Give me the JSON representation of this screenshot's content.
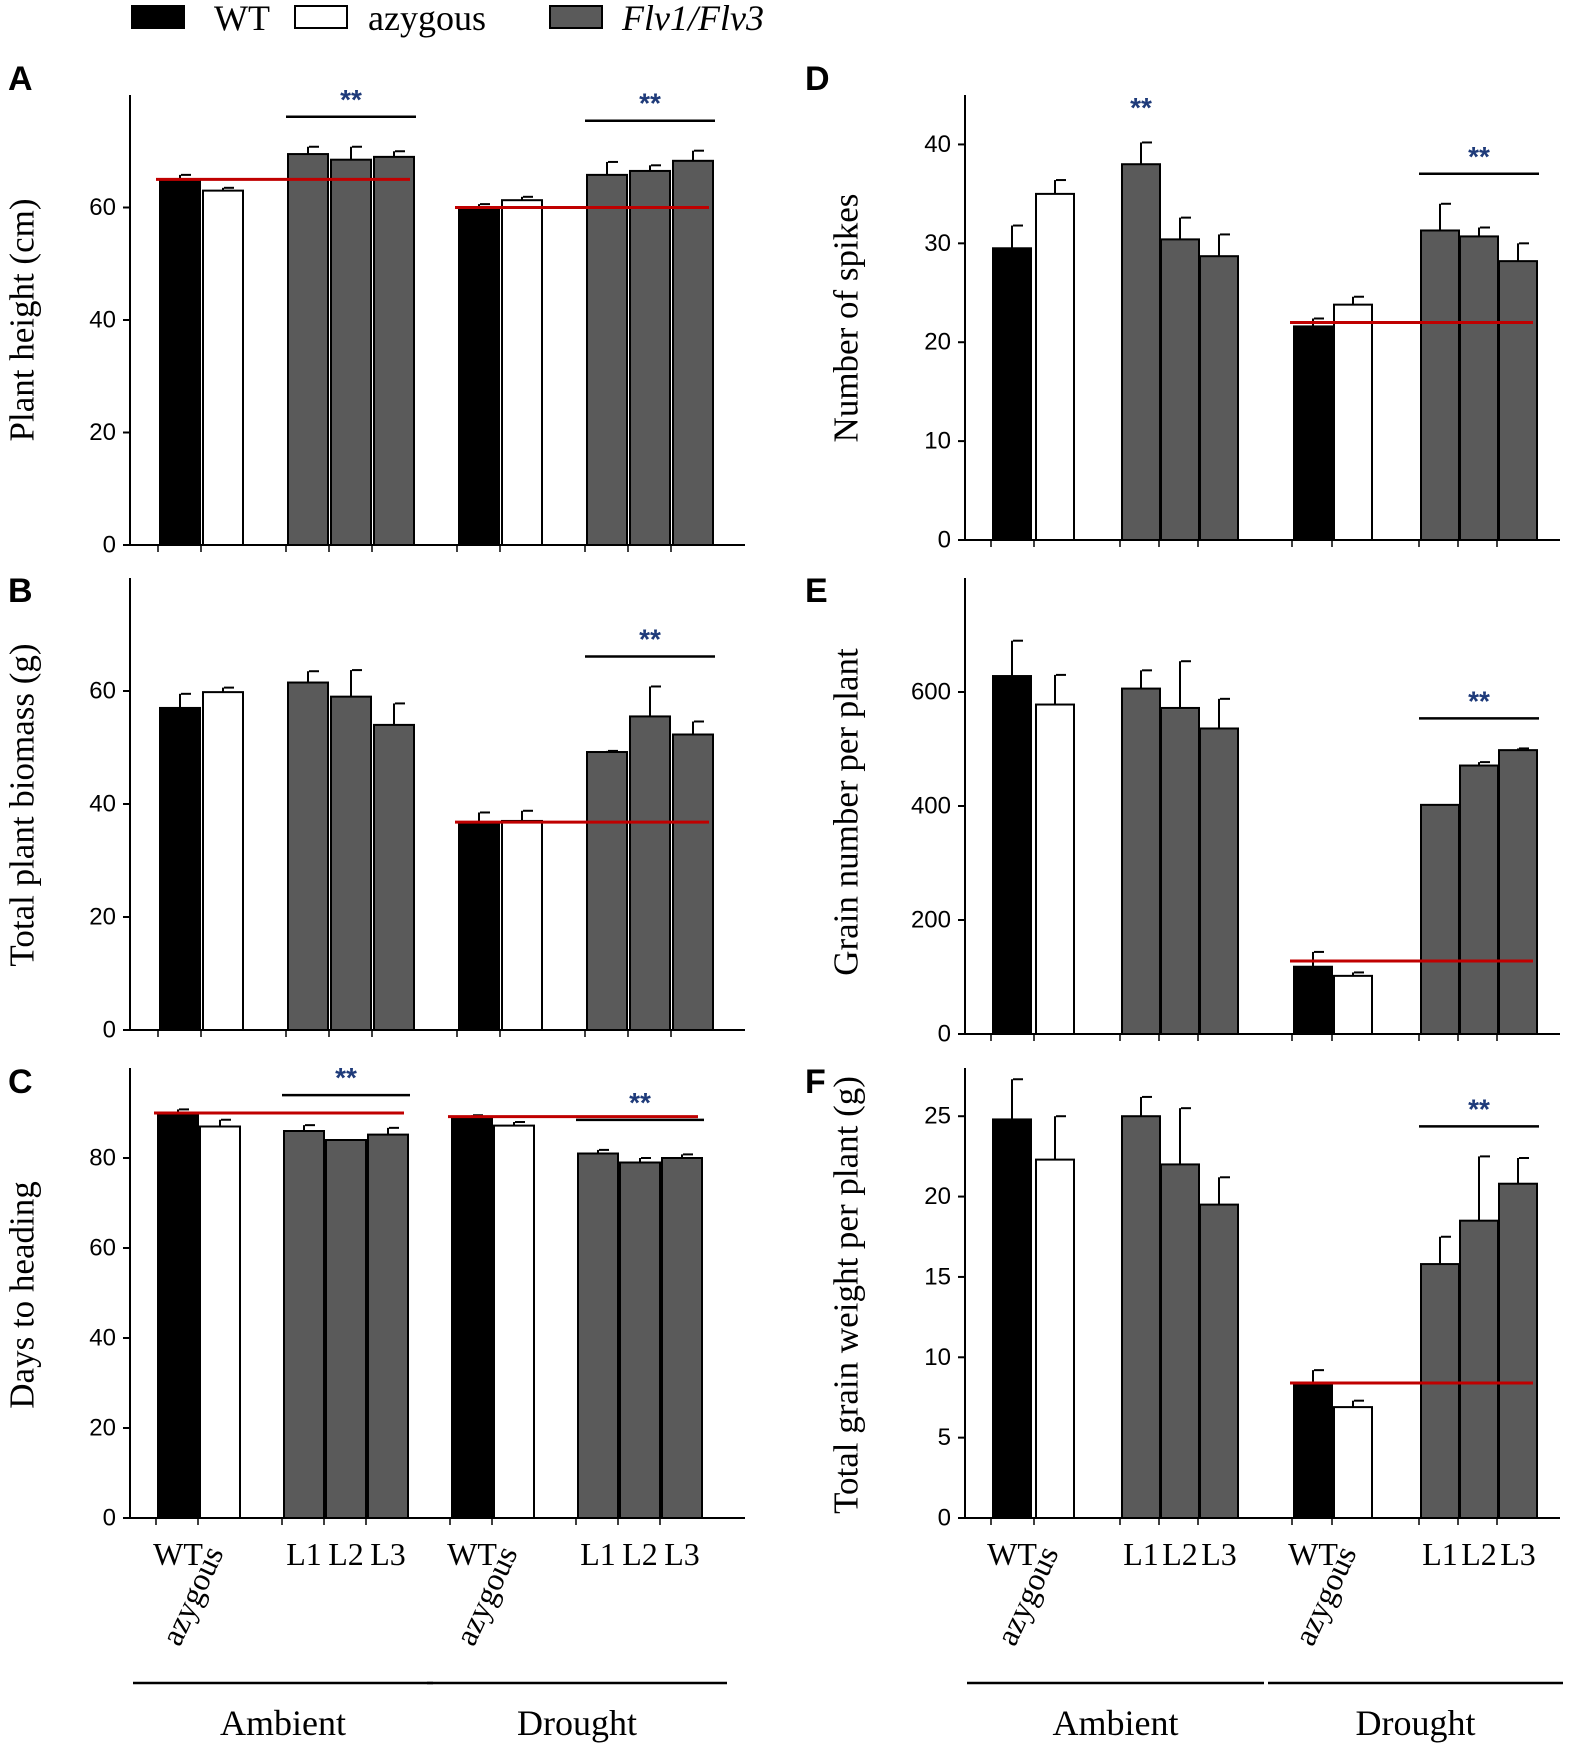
{
  "legend": [
    {
      "label": "WT",
      "fill": "#000000",
      "italic": false
    },
    {
      "label": "azygous",
      "fill": "#ffffff",
      "italic": false
    },
    {
      "label": "Flv1/Flv3",
      "fill": "#5a5a5a",
      "italic": true
    }
  ],
  "colors": {
    "wt": "#000000",
    "azygous": "#ffffff",
    "flv": "#5a5a5a",
    "reference_line": "#c00000",
    "significance": "#1f3b7a",
    "axis": "#000000"
  },
  "x_axis": {
    "categories": [
      "WT",
      "azygous",
      "L1",
      "L2",
      "L3",
      "WT",
      "azygous",
      "L1",
      "L2",
      "L3"
    ],
    "group_labels": [
      "Ambient",
      "Drought"
    ]
  },
  "chart_data": [
    {
      "panel": "A",
      "type": "bar",
      "title": "",
      "xlabel": "",
      "ylabel": "Plant height (cm)",
      "ylim": [
        0,
        80
      ],
      "yticks": [
        0,
        20,
        40,
        60
      ],
      "series": [
        {
          "name": "Ambient",
          "categories": [
            "WT",
            "azygous",
            "L1",
            "L2",
            "L3"
          ],
          "values": [
            65,
            63,
            69.5,
            68.5,
            69
          ],
          "errors": [
            0.8,
            0.5,
            1.3,
            2.3,
            1
          ]
        },
        {
          "name": "Drought",
          "categories": [
            "WT",
            "azygous",
            "L1",
            "L2",
            "L3"
          ],
          "values": [
            60,
            61.3,
            65.8,
            66.5,
            68.3
          ],
          "errors": [
            0.6,
            0.6,
            2.3,
            1,
            1.8
          ]
        }
      ],
      "reference_lines": [
        {
          "group": "Ambient",
          "value": 65
        },
        {
          "group": "Drought",
          "value": 60
        }
      ],
      "significance": [
        {
          "group": "Ambient",
          "label": "**",
          "from": "L1",
          "to": "L3"
        },
        {
          "group": "Drought",
          "label": "**",
          "from": "L1",
          "to": "L3"
        }
      ]
    },
    {
      "panel": "B",
      "type": "bar",
      "title": "",
      "xlabel": "",
      "ylabel": "Total plant biomass (g)",
      "ylim": [
        0,
        80
      ],
      "yticks": [
        0,
        20,
        40,
        60
      ],
      "series": [
        {
          "name": "Ambient",
          "categories": [
            "WT",
            "azygous",
            "L1",
            "L2",
            "L3"
          ],
          "values": [
            57,
            59.8,
            61.5,
            59,
            54
          ],
          "errors": [
            2.5,
            0.8,
            2,
            4.7,
            3.8
          ]
        },
        {
          "name": "Drought",
          "categories": [
            "WT",
            "azygous",
            "L1",
            "L2",
            "L3"
          ],
          "values": [
            36.5,
            37,
            49.2,
            55.5,
            52.3
          ],
          "errors": [
            2,
            1.8,
            0.2,
            5.3,
            2.3
          ]
        }
      ],
      "reference_lines": [
        {
          "group": "Drought",
          "value": 36.8
        }
      ],
      "significance": [
        {
          "group": "Drought",
          "label": "**",
          "from": "L1",
          "to": "L3"
        }
      ]
    },
    {
      "panel": "C",
      "type": "bar",
      "title": "",
      "xlabel": "",
      "ylabel": "Days to heading",
      "ylim": [
        0,
        100
      ],
      "yticks": [
        0,
        20,
        40,
        60,
        80
      ],
      "series": [
        {
          "name": "Ambient",
          "categories": [
            "WT",
            "azygous",
            "L1",
            "L2",
            "L3"
          ],
          "values": [
            90,
            87,
            86,
            84,
            85.2
          ],
          "errors": [
            0.8,
            1.5,
            1.3,
            0,
            1.5
          ]
        },
        {
          "name": "Drought",
          "categories": [
            "WT",
            "azygous",
            "L1",
            "L2",
            "L3"
          ],
          "values": [
            89,
            87.2,
            81,
            79,
            80
          ],
          "errors": [
            0.5,
            0.8,
            0.8,
            1,
            0.8
          ]
        }
      ],
      "reference_lines": [
        {
          "group": "Ambient",
          "value": 90
        },
        {
          "group": "Drought",
          "value": 89.2
        }
      ],
      "significance": [
        {
          "group": "Ambient",
          "label": "**",
          "from": "L1",
          "to": "L3"
        },
        {
          "group": "Drought",
          "label": "**",
          "from": "L1",
          "to": "L3"
        }
      ]
    },
    {
      "panel": "D",
      "type": "bar",
      "title": "",
      "xlabel": "",
      "ylabel": "Number of spikes",
      "ylim": [
        0,
        45
      ],
      "yticks": [
        0,
        10,
        20,
        30,
        40
      ],
      "series": [
        {
          "name": "Ambient",
          "categories": [
            "WT",
            "azygous",
            "L1",
            "L2",
            "L3"
          ],
          "values": [
            29.5,
            35,
            38,
            30.4,
            28.7
          ],
          "errors": [
            2.3,
            1.4,
            2.2,
            2.2,
            2.2
          ]
        },
        {
          "name": "Drought",
          "categories": [
            "WT",
            "azygous",
            "L1",
            "L2",
            "L3"
          ],
          "values": [
            21.6,
            23.8,
            31.3,
            30.7,
            28.2
          ],
          "errors": [
            0.8,
            0.8,
            2.7,
            0.9,
            1.8
          ]
        }
      ],
      "reference_lines": [
        {
          "group": "Drought",
          "value": 22
        }
      ],
      "significance": [
        {
          "group": "Ambient",
          "label": "**",
          "over": "L1"
        },
        {
          "group": "Drought",
          "label": "**",
          "from": "L1",
          "to": "L3"
        }
      ]
    },
    {
      "panel": "E",
      "type": "bar",
      "title": "",
      "xlabel": "",
      "ylabel": "Grain number per plant",
      "ylim": [
        0,
        800
      ],
      "yticks": [
        0,
        200,
        400,
        600
      ],
      "series": [
        {
          "name": "Ambient",
          "categories": [
            "WT",
            "azygous",
            "L1",
            "L2",
            "L3"
          ],
          "values": [
            628,
            578,
            606,
            572,
            536
          ],
          "errors": [
            62,
            52,
            32,
            82,
            52
          ]
        },
        {
          "name": "Drought",
          "categories": [
            "WT",
            "azygous",
            "L1",
            "L2",
            "L3"
          ],
          "values": [
            118,
            102,
            402,
            471,
            498
          ],
          "errors": [
            26,
            6,
            0,
            6,
            3
          ]
        }
      ],
      "reference_lines": [
        {
          "group": "Drought",
          "value": 128
        }
      ],
      "significance": [
        {
          "group": "Drought",
          "label": "**",
          "from": "L1",
          "to": "L3"
        }
      ]
    },
    {
      "panel": "F",
      "type": "bar",
      "title": "",
      "xlabel": "",
      "ylabel": "Total grain weight per plant (g)",
      "ylim": [
        0,
        28
      ],
      "yticks": [
        0,
        5,
        10,
        15,
        20,
        25
      ],
      "series": [
        {
          "name": "Ambient",
          "categories": [
            "WT",
            "azygous",
            "L1",
            "L2",
            "L3"
          ],
          "values": [
            24.8,
            22.3,
            25,
            22,
            19.5
          ],
          "errors": [
            2.5,
            2.7,
            1.2,
            3.5,
            1.7
          ]
        },
        {
          "name": "Drought",
          "categories": [
            "WT",
            "azygous",
            "L1",
            "L2",
            "L3"
          ],
          "values": [
            8.3,
            6.9,
            15.8,
            18.5,
            20.8
          ],
          "errors": [
            0.9,
            0.4,
            1.7,
            4,
            1.6
          ]
        }
      ],
      "reference_lines": [
        {
          "group": "Drought",
          "value": 8.4
        }
      ],
      "significance": [
        {
          "group": "Drought",
          "label": "**",
          "from": "L1",
          "to": "L3"
        }
      ]
    }
  ]
}
